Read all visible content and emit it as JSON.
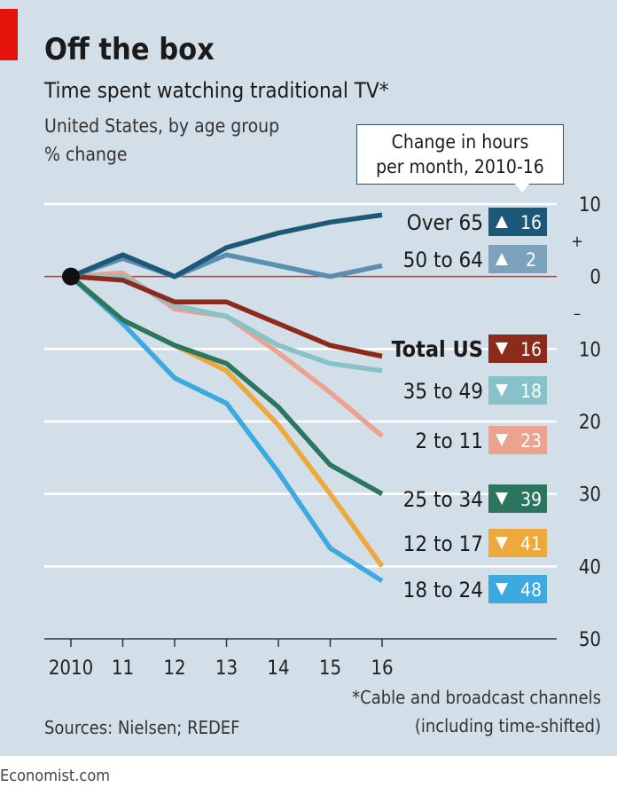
{
  "header": {
    "title": "Off the box",
    "subtitle": "Time spent watching traditional TV*",
    "desc1": "United States, by age group",
    "desc2": "% change"
  },
  "callout": {
    "line1": "Change in hours",
    "line2": "per month, 2010-16"
  },
  "footer": {
    "sources": "Sources: Nielsen; REDEF",
    "footnote1": "*Cable and broadcast channels",
    "footnote2": "(including time-shifted)",
    "credit": "Economist.com"
  },
  "colors": {
    "brand_red": "#e3120b",
    "background": "#d3dfe8"
  },
  "chart_data": {
    "type": "line",
    "x": [
      "2010",
      "11",
      "12",
      "13",
      "14",
      "15",
      "16"
    ],
    "ylim": [
      -50,
      10
    ],
    "y_ticks": [
      {
        "value": 10,
        "label": "10"
      },
      {
        "value": 0,
        "label": "0"
      },
      {
        "value": -10,
        "label": "10"
      },
      {
        "value": -20,
        "label": "20"
      },
      {
        "value": -30,
        "label": "30"
      },
      {
        "value": -40,
        "label": "40"
      },
      {
        "value": -50,
        "label": "50"
      }
    ],
    "sign_labels": {
      "plus": "+",
      "minus": "–"
    },
    "grid": true,
    "series": [
      {
        "name": "Over 65",
        "change": "16",
        "direction": "up",
        "color": "#1e5878",
        "badge_color": "#1e5878",
        "values": [
          0,
          3,
          0,
          4,
          6,
          7.5,
          8.5
        ]
      },
      {
        "name": "50 to 64",
        "change": "2",
        "direction": "up",
        "color": "#5b8fb2",
        "badge_color": "#7ca2bd",
        "values": [
          0,
          2.5,
          0,
          3,
          1.5,
          0,
          1.5
        ]
      },
      {
        "name": "Total US",
        "change": "16",
        "direction": "down",
        "color": "#8c2b1c",
        "badge_color": "#8c2b1c",
        "bold": true,
        "values": [
          0,
          -0.5,
          -3.5,
          -3.5,
          -6.5,
          -9.5,
          -11
        ]
      },
      {
        "name": "35 to 49",
        "change": "18",
        "direction": "down",
        "color": "#86c2c8",
        "badge_color": "#86c2c8",
        "values": [
          0,
          0,
          -4,
          -5.5,
          -9.5,
          -12,
          -13
        ]
      },
      {
        "name": "2 to 11",
        "change": "23",
        "direction": "down",
        "color": "#eba28e",
        "badge_color": "#eba28e",
        "values": [
          0,
          0.5,
          -4.5,
          -5.5,
          -10.5,
          -16,
          -22
        ]
      },
      {
        "name": "25 to 34",
        "change": "39",
        "direction": "down",
        "color": "#2c7660",
        "badge_color": "#2c7660",
        "values": [
          0,
          -6,
          -9.5,
          -12,
          -18,
          -26,
          -30
        ]
      },
      {
        "name": "12 to 17",
        "change": "41",
        "direction": "down",
        "color": "#eda93b",
        "badge_color": "#eda93b",
        "values": [
          0,
          -6,
          -9.5,
          -13,
          -20.5,
          -30,
          -40
        ]
      },
      {
        "name": "18 to 24",
        "change": "48",
        "direction": "down",
        "color": "#3caae0",
        "badge_color": "#3caae0",
        "values": [
          0,
          -6.5,
          -14,
          -17.5,
          -27,
          -37.5,
          -42
        ]
      }
    ]
  }
}
